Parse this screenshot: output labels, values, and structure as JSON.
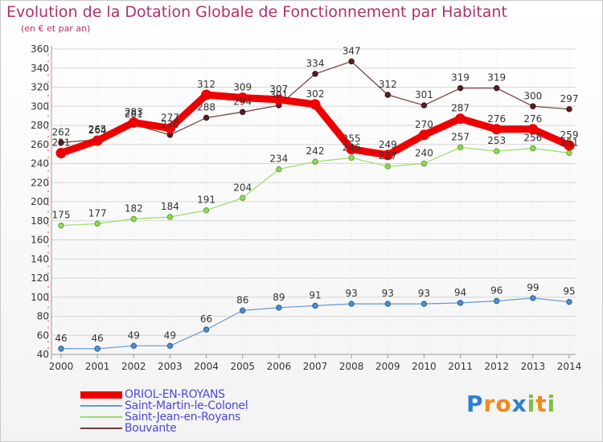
{
  "title": "Evolution de la Dotation Globale de Fonctionnement par Habitant",
  "subtitle": "(en € et par an)",
  "colors": {
    "title": "#b0306b",
    "legend_text": "#4b49d3",
    "grid": "#d6d6d6"
  },
  "chart_data": {
    "type": "line",
    "title": "Evolution de la Dotation Globale de Fonctionnement par Habitant",
    "subtitle": "(en € et par an)",
    "x": [
      "2000",
      "2001",
      "2002",
      "2003",
      "2004",
      "2005",
      "2006",
      "2007",
      "2008",
      "2009",
      "2010",
      "2011",
      "2012",
      "2013",
      "2014"
    ],
    "ylim": [
      40,
      360
    ],
    "yticks": [
      40,
      60,
      80,
      100,
      120,
      140,
      160,
      180,
      200,
      220,
      240,
      260,
      280,
      300,
      320,
      340,
      360
    ],
    "grid": true,
    "legend_position": "bottom-left",
    "series": [
      {
        "name": "ORIOL-EN-ROYANS",
        "color": "#ee0000",
        "values": [
          251,
          264,
          283,
          277,
          312,
          309,
          307,
          302,
          255,
          249,
          270,
          287,
          276,
          276,
          259
        ]
      },
      {
        "name": "Saint-Martin-le-Colonel",
        "color": "#6699cc",
        "values": [
          46,
          46,
          49,
          49,
          66,
          86,
          89,
          91,
          93,
          93,
          93,
          94,
          96,
          99,
          95
        ]
      },
      {
        "name": "Saint-Jean-en-Royans",
        "color": "#99dd66",
        "values": [
          175,
          177,
          182,
          184,
          191,
          204,
          234,
          242,
          246,
          237,
          240,
          257,
          253,
          256,
          251
        ]
      },
      {
        "name": "Bouvante",
        "color": "#733a3a",
        "values": [
          262,
          265,
          281,
          270,
          288,
          294,
          301,
          334,
          347,
          312,
          301,
          319,
          319,
          300,
          297
        ]
      }
    ]
  },
  "logo": {
    "text": "Proxiti",
    "letters": [
      "P",
      "r",
      "o",
      "x",
      "i",
      "t",
      "i"
    ],
    "colors": [
      "#2f7fd0",
      "#f08a1c",
      "#f08a1c",
      "#2f7fd0",
      "#7cc13a",
      "#f08a1c",
      "#7cc13a"
    ]
  }
}
